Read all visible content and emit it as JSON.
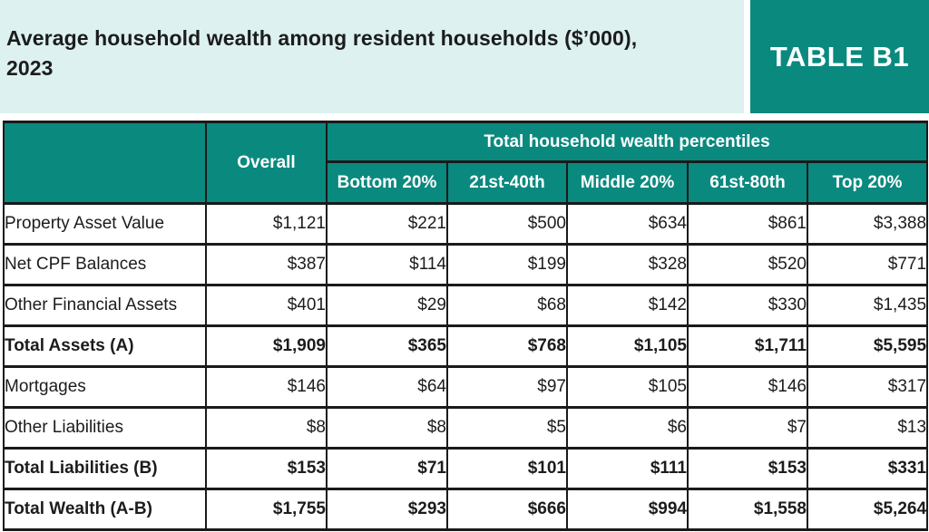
{
  "header": {
    "title": "Average household wealth among resident households ($’000), 2023",
    "badge": "TABLE B1"
  },
  "table": {
    "corner_label": "",
    "overall_header": "Overall",
    "group_header": "Total household wealth percentiles",
    "percentile_headers": [
      "Bottom 20%",
      "21st-40th",
      "Middle 20%",
      "61st-80th",
      "Top 20%"
    ],
    "rows": [
      {
        "label": "Property Asset Value",
        "bold": false,
        "values": [
          "$1,121",
          "$221",
          "$500",
          "$634",
          "$861",
          "$3,388"
        ]
      },
      {
        "label": "Net CPF Balances",
        "bold": false,
        "values": [
          "$387",
          "$114",
          "$199",
          "$328",
          "$520",
          "$771"
        ]
      },
      {
        "label": "Other Financial Assets",
        "bold": false,
        "values": [
          "$401",
          "$29",
          "$68",
          "$142",
          "$330",
          "$1,435"
        ]
      },
      {
        "label": "Total Assets (A)",
        "bold": true,
        "values": [
          "$1,909",
          "$365",
          "$768",
          "$1,105",
          "$1,711",
          "$5,595"
        ]
      },
      {
        "label": "Mortgages",
        "bold": false,
        "values": [
          "$146",
          "$64",
          "$97",
          "$105",
          "$146",
          "$317"
        ]
      },
      {
        "label": "Other Liabilities",
        "bold": false,
        "values": [
          "$8",
          "$8",
          "$5",
          "$6",
          "$7",
          "$13"
        ]
      },
      {
        "label": "Total Liabilities (B)",
        "bold": true,
        "values": [
          "$153",
          "$71",
          "$101",
          "$111",
          "$153",
          "$331"
        ]
      },
      {
        "label": "Total Wealth (A-B)",
        "bold": true,
        "values": [
          "$1,755",
          "$293",
          "$666",
          "$994",
          "$1,558",
          "$5,264"
        ]
      }
    ]
  },
  "colors": {
    "teal": "#0a897f",
    "mint": "#dcf1f0",
    "border": "#1a1a1a",
    "text": "#1c1c1c",
    "header_text": "#ffffff"
  },
  "chart_data": {
    "type": "table",
    "title": "Average household wealth among resident households ($'000), 2023",
    "units": "thousands of dollars",
    "columns": [
      "Overall",
      "Bottom 20%",
      "21st-40th",
      "Middle 20%",
      "61st-80th",
      "Top 20%"
    ],
    "column_group_label": "Total household wealth percentiles",
    "rows": [
      {
        "label": "Property Asset Value",
        "values": [
          1121,
          221,
          500,
          634,
          861,
          3388
        ]
      },
      {
        "label": "Net CPF Balances",
        "values": [
          387,
          114,
          199,
          328,
          520,
          771
        ]
      },
      {
        "label": "Other Financial Assets",
        "values": [
          401,
          29,
          68,
          142,
          330,
          1435
        ]
      },
      {
        "label": "Total Assets (A)",
        "values": [
          1909,
          365,
          768,
          1105,
          1711,
          5595
        ]
      },
      {
        "label": "Mortgages",
        "values": [
          146,
          64,
          97,
          105,
          146,
          317
        ]
      },
      {
        "label": "Other Liabilities",
        "values": [
          8,
          8,
          5,
          6,
          7,
          13
        ]
      },
      {
        "label": "Total Liabilities (B)",
        "values": [
          153,
          71,
          101,
          111,
          153,
          331
        ]
      },
      {
        "label": "Total Wealth (A-B)",
        "values": [
          1755,
          293,
          666,
          994,
          1558,
          5264
        ]
      }
    ]
  }
}
